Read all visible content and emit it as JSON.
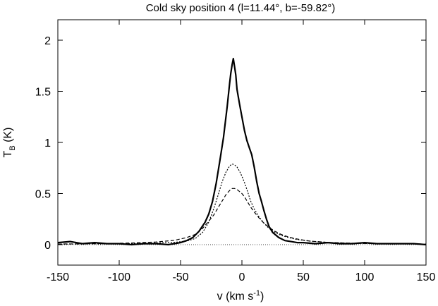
{
  "chart_data": {
    "type": "line",
    "title": "Cold sky position 4 (l=11.44°, b=-59.82°)",
    "xlabel": "v (km s-1)",
    "ylabel": "TB (K)",
    "xlim": [
      -150,
      150
    ],
    "ylim": [
      -0.2,
      2.2
    ],
    "x_ticks": [
      -150,
      -100,
      -50,
      0,
      50,
      100,
      150
    ],
    "y_ticks": [
      0,
      0.5,
      1,
      1.5,
      2
    ],
    "x_tick_labels": [
      "-150",
      "-100",
      "-50",
      "0",
      "50",
      "100",
      "150"
    ],
    "y_tick_labels": [
      "0",
      "0.5",
      "1",
      "1.5",
      "2"
    ],
    "grid": false,
    "legend": "none",
    "series": [
      {
        "style": "solid-thick",
        "x": [
          -150,
          -140,
          -130,
          -120,
          -110,
          -100,
          -90,
          -80,
          -70,
          -60,
          -50,
          -45,
          -40,
          -35,
          -30,
          -27,
          -24,
          -21,
          -18,
          -15,
          -12,
          -10,
          -9,
          -8,
          -7,
          -6,
          -5,
          -4,
          -2,
          0,
          2,
          4,
          6,
          8,
          10,
          12,
          14,
          16,
          18,
          20,
          22,
          25,
          30,
          35,
          40,
          45,
          50,
          60,
          70,
          80,
          90,
          100,
          110,
          120,
          130,
          140,
          150
        ],
        "y": [
          0.02,
          0.03,
          0.01,
          0.02,
          0.01,
          0.01,
          0.0,
          0.01,
          0.01,
          0.0,
          0.02,
          0.04,
          0.07,
          0.13,
          0.22,
          0.3,
          0.42,
          0.6,
          0.82,
          1.05,
          1.35,
          1.58,
          1.68,
          1.76,
          1.82,
          1.74,
          1.66,
          1.52,
          1.38,
          1.25,
          1.12,
          1.02,
          0.95,
          0.88,
          0.76,
          0.62,
          0.5,
          0.42,
          0.33,
          0.25,
          0.18,
          0.12,
          0.07,
          0.04,
          0.03,
          0.02,
          0.02,
          0.01,
          0.02,
          0.01,
          0.01,
          0.02,
          0.01,
          0.01,
          0.01,
          0.01,
          0.0
        ]
      },
      {
        "style": "dotted",
        "x": [
          -150,
          -130,
          -110,
          -90,
          -70,
          -55,
          -45,
          -38,
          -32,
          -27,
          -23,
          -19,
          -16,
          -13,
          -10,
          -8,
          -6,
          -4,
          -2,
          0,
          2,
          4,
          7,
          10,
          14,
          18,
          22,
          27,
          32,
          38,
          45,
          55,
          70,
          90,
          110,
          130,
          150
        ],
        "y": [
          0.005,
          0.006,
          0.008,
          0.011,
          0.016,
          0.023,
          0.035,
          0.06,
          0.12,
          0.22,
          0.35,
          0.5,
          0.62,
          0.71,
          0.77,
          0.79,
          0.78,
          0.76,
          0.72,
          0.67,
          0.61,
          0.54,
          0.43,
          0.35,
          0.27,
          0.21,
          0.16,
          0.12,
          0.09,
          0.07,
          0.05,
          0.035,
          0.022,
          0.014,
          0.01,
          0.008,
          0.006
        ]
      },
      {
        "style": "dashed",
        "x": [
          -150,
          -130,
          -110,
          -90,
          -70,
          -55,
          -45,
          -38,
          -32,
          -27,
          -23,
          -19,
          -16,
          -13,
          -10,
          -8,
          -6,
          -4,
          -2,
          0,
          2,
          4,
          7,
          10,
          14,
          18,
          22,
          27,
          32,
          38,
          45,
          55,
          70,
          90,
          110,
          130,
          150
        ],
        "y": [
          0.006,
          0.008,
          0.011,
          0.016,
          0.026,
          0.042,
          0.07,
          0.1,
          0.16,
          0.23,
          0.29,
          0.37,
          0.43,
          0.49,
          0.53,
          0.55,
          0.55,
          0.54,
          0.52,
          0.5,
          0.47,
          0.43,
          0.37,
          0.32,
          0.26,
          0.21,
          0.17,
          0.13,
          0.1,
          0.075,
          0.055,
          0.035,
          0.022,
          0.014,
          0.01,
          0.008,
          0.006
        ]
      },
      {
        "style": "thin-dotted-baseline",
        "x": [
          -150,
          150
        ],
        "y": [
          0,
          0
        ]
      }
    ]
  }
}
